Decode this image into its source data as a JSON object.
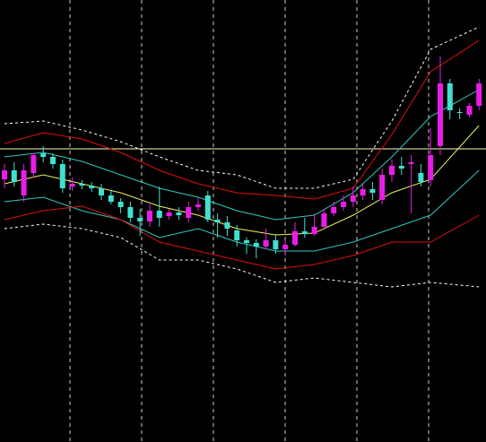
{
  "chart_data": {
    "type": "candlestick",
    "open": [
      293,
      303,
      275,
      300,
      322,
      318,
      310,
      285,
      288,
      286,
      283,
      275,
      268,
      262,
      250,
      246,
      258,
      252,
      256,
      250,
      262,
      275,
      248,
      245,
      236,
      225,
      222,
      218,
      225,
      215,
      220,
      235,
      232,
      240,
      255,
      262,
      268,
      275,
      282,
      270,
      298,
      308,
      310,
      300,
      292,
      330,
      400,
      368,
      365,
      375
    ],
    "high": [
      310,
      312,
      310,
      322,
      330,
      322,
      315,
      295,
      292,
      290,
      288,
      280,
      272,
      268,
      260,
      265,
      285,
      260,
      262,
      268,
      272,
      280,
      255,
      252,
      242,
      228,
      226,
      238,
      232,
      225,
      245,
      250,
      255,
      260,
      268,
      275,
      285,
      288,
      290,
      305,
      315,
      318,
      320,
      310,
      350,
      430,
      405,
      372,
      378,
      405
    ],
    "low": [
      283,
      285,
      268,
      295,
      312,
      305,
      278,
      280,
      282,
      279,
      270,
      265,
      255,
      245,
      230,
      240,
      240,
      248,
      248,
      245,
      258,
      245,
      228,
      230,
      218,
      210,
      205,
      215,
      210,
      208,
      218,
      228,
      230,
      238,
      252,
      258,
      262,
      270,
      270,
      265,
      290,
      298,
      255,
      285,
      285,
      320,
      360,
      360,
      362,
      370
    ],
    "close": [
      303,
      290,
      303,
      320,
      318,
      310,
      283,
      288,
      286,
      283,
      275,
      268,
      262,
      250,
      246,
      258,
      250,
      256,
      253,
      262,
      265,
      248,
      245,
      238,
      225,
      222,
      218,
      225,
      215,
      220,
      235,
      232,
      240,
      255,
      262,
      268,
      275,
      282,
      278,
      298,
      308,
      305,
      312,
      290,
      320,
      400,
      370,
      367,
      375,
      400
    ],
    "bull_color": "#e81ee8",
    "bear_color": "#40e0d0",
    "ylim": [
      0,
      493
    ],
    "band_index": [
      0,
      4,
      8,
      12,
      16,
      20,
      24,
      28,
      32,
      36,
      40,
      44,
      49
    ],
    "bands": [
      {
        "color": "#ffffff",
        "dashed": true,
        "values": [
          355,
          358,
          348,
          335,
          318,
          303,
          298,
          283,
          283,
          293,
          358,
          438,
          463
        ]
      },
      {
        "color": "#e01010",
        "dashed": false,
        "values": [
          333,
          345,
          338,
          323,
          303,
          288,
          278,
          275,
          271,
          283,
          343,
          413,
          448
        ]
      },
      {
        "color": "#30c8c0",
        "dashed": false,
        "values": [
          318,
          323,
          313,
          298,
          283,
          273,
          258,
          248,
          253,
          278,
          318,
          363,
          393
        ]
      },
      {
        "color": "#f0f060",
        "dashed": false,
        "values": [
          288,
          298,
          288,
          278,
          263,
          253,
          238,
          231,
          233,
          253,
          278,
          293,
          353
        ]
      },
      {
        "color": "#30c8c0",
        "dashed": false,
        "values": [
          268,
          273,
          258,
          248,
          228,
          238,
          223,
          213,
          213,
          223,
          238,
          253,
          303
        ]
      },
      {
        "color": "#e01010",
        "dashed": false,
        "values": [
          248,
          258,
          263,
          248,
          223,
          213,
          203,
          193,
          198,
          208,
          223,
          223,
          253
        ]
      },
      {
        "color": "#ffffff",
        "dashed": true,
        "values": [
          238,
          243,
          238,
          228,
          203,
          203,
          193,
          178,
          183,
          178,
          173,
          178,
          173
        ]
      }
    ],
    "level": 327,
    "level_color": "#ffffc0"
  }
}
